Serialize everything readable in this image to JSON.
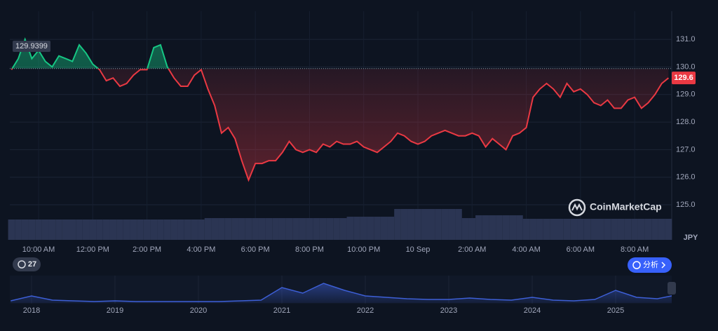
{
  "chart_data": {
    "type": "line",
    "categories": [
      null,
      null,
      null,
      null,
      "10:00 AM",
      null,
      null,
      null,
      null,
      null,
      null,
      null,
      "12:00 PM",
      null,
      null,
      null,
      null,
      null,
      null,
      null,
      "2:00 PM",
      null,
      null,
      null,
      null,
      null,
      null,
      null,
      "4:00 PM",
      null,
      null,
      null,
      null,
      null,
      null,
      null,
      "6:00 PM",
      null,
      null,
      null,
      null,
      null,
      null,
      null,
      "8:00 PM",
      null,
      null,
      null,
      null,
      null,
      null,
      null,
      "10:00 PM",
      null,
      null,
      null,
      null,
      null,
      null,
      null,
      "10 Sep",
      null,
      null,
      null,
      null,
      null,
      null,
      null,
      "2:00 AM",
      null,
      null,
      null,
      null,
      null,
      null,
      null,
      "4:00 AM",
      null,
      null,
      null,
      null,
      null,
      null,
      null,
      "6:00 AM",
      null,
      null,
      null,
      null,
      null,
      null,
      null,
      "8:00 AM",
      null,
      null,
      null,
      null,
      null
    ],
    "series": [
      {
        "up_color": "#16c784",
        "down_color": "#ea3943",
        "values": [
          129.9,
          130.3,
          131.0,
          130.3,
          130.6,
          130.2,
          130.0,
          130.4,
          130.3,
          130.2,
          130.8,
          130.5,
          130.1,
          129.9,
          129.5,
          129.6,
          129.3,
          129.4,
          129.7,
          129.9,
          129.9,
          130.7,
          130.8,
          130.0,
          129.6,
          129.3,
          129.3,
          129.7,
          129.9,
          129.2,
          128.6,
          127.6,
          127.8,
          127.4,
          126.6,
          125.9,
          126.5,
          126.5,
          126.6,
          126.6,
          126.9,
          127.3,
          127.0,
          126.9,
          127.0,
          126.9,
          127.2,
          127.1,
          127.3,
          127.2,
          127.2,
          127.3,
          127.1,
          127.0,
          126.9,
          127.1,
          127.3,
          127.6,
          127.5,
          127.3,
          127.2,
          127.3,
          127.5,
          127.6,
          127.7,
          127.6,
          127.5,
          127.5,
          127.6,
          127.5,
          127.1,
          127.4,
          127.2,
          127.0,
          127.5,
          127.6,
          127.8,
          128.9,
          129.2,
          129.4,
          129.2,
          128.9,
          129.4,
          129.1,
          129.2,
          129.0,
          128.7,
          128.6,
          128.8,
          128.5,
          128.5,
          128.8,
          128.9,
          128.5,
          128.7,
          129.0,
          129.4,
          129.6
        ]
      }
    ],
    "baseline": 129.9399,
    "volume": {
      "color": "#2b3553",
      "values": [
        29,
        29,
        29,
        29,
        29,
        29,
        29,
        29,
        29,
        29,
        29,
        29,
        29,
        29,
        29,
        29,
        29,
        29,
        29,
        29,
        29,
        29,
        29,
        29,
        29,
        29,
        29,
        29,
        29,
        31,
        31,
        31,
        31,
        31,
        31,
        31,
        31,
        31,
        31,
        31,
        31,
        31,
        31,
        31,
        31,
        31,
        31,
        31,
        31,
        31,
        33,
        33,
        33,
        33,
        33,
        33,
        33,
        44,
        44,
        44,
        44,
        44,
        44,
        44,
        44,
        44,
        44,
        31,
        31,
        35,
        35,
        35,
        35,
        35,
        35,
        35,
        30,
        30,
        30,
        30,
        30,
        30,
        30,
        30,
        30,
        30,
        30,
        30,
        30,
        30,
        30,
        30,
        30,
        30,
        30,
        30,
        30,
        30
      ]
    },
    "ylim": [
      123.73,
      132.02
    ],
    "yticks": [
      {
        "value": 125,
        "label": "125.0"
      },
      {
        "value": 126,
        "label": "126.0"
      },
      {
        "value": 127,
        "label": "127.0"
      },
      {
        "value": 128,
        "label": "128.0"
      },
      {
        "value": 129,
        "label": "129.0"
      },
      {
        "value": 130,
        "label": "130.0"
      },
      {
        "value": 131,
        "label": "131.0"
      }
    ],
    "grid": true,
    "currency": "JPY",
    "navigator": {
      "color": "#3d5fd6",
      "categories": [
        null,
        "2018",
        null,
        null,
        null,
        "2019",
        null,
        null,
        null,
        "2020",
        null,
        null,
        null,
        "2021",
        null,
        null,
        null,
        "2022",
        null,
        null,
        null,
        "2023",
        null,
        null,
        null,
        "2024",
        null,
        null,
        null,
        "2025",
        null,
        null,
        null
      ],
      "values": [
        3,
        10,
        4,
        3,
        2,
        3,
        2,
        2,
        2,
        2,
        2,
        3,
        4,
        22,
        14,
        28,
        18,
        10,
        8,
        6,
        5,
        5,
        7,
        5,
        4,
        8,
        4,
        3,
        5,
        18,
        8,
        6,
        12
      ]
    }
  },
  "ui": {
    "badge": "27",
    "button": "分析",
    "watermark": "CoinMarketCap"
  }
}
